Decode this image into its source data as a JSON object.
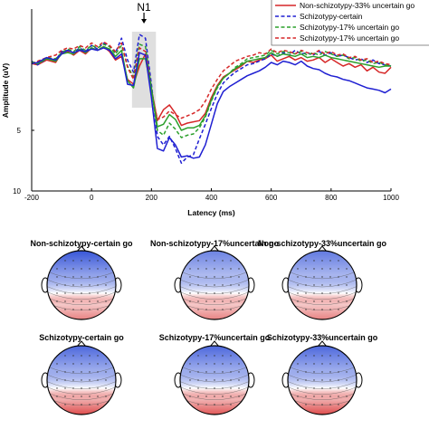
{
  "chart_data": [
    {
      "type": "line",
      "title": "",
      "xlabel": "Latency (ms)",
      "ylabel": "Amplitude (uV)",
      "xlim": [
        -200,
        1000
      ],
      "ylim": [
        -5,
        10
      ],
      "y_axis_reversed": true,
      "x_ticks": [
        -200,
        0,
        200,
        400,
        600,
        800,
        1000
      ],
      "y_ticks": [
        5,
        10
      ],
      "grid": false,
      "legend_position": "top-right",
      "annotation": {
        "label": "N1",
        "window": [
          135,
          215
        ],
        "arrow_at": 175
      },
      "series": [
        {
          "name": "Non-schizotypy-33% uncertain go",
          "color": "#d62728",
          "style": "solid",
          "x": [
            -200,
            -180,
            -150,
            -120,
            -100,
            -80,
            -60,
            -40,
            -20,
            0,
            20,
            40,
            60,
            80,
            100,
            120,
            140,
            160,
            180,
            200,
            220,
            240,
            260,
            280,
            300,
            320,
            340,
            360,
            380,
            400,
            420,
            440,
            460,
            480,
            500,
            520,
            540,
            560,
            580,
            600,
            620,
            640,
            660,
            680,
            700,
            720,
            740,
            760,
            780,
            800,
            820,
            840,
            860,
            880,
            900,
            920,
            940,
            960,
            980,
            1000
          ],
          "y": [
            -0.5,
            -0.4,
            -0.8,
            -0.6,
            -1.4,
            -1.5,
            -1.2,
            -1.6,
            -1.3,
            -1.8,
            -1.6,
            -1.9,
            -1.5,
            -0.8,
            -1.1,
            0.8,
            1.2,
            -0.3,
            -1.3,
            1.6,
            4.2,
            3.3,
            2.9,
            3.6,
            4.6,
            4.4,
            4.3,
            4.2,
            3.6,
            2.3,
            1.3,
            0.6,
            0.3,
            0.0,
            -0.3,
            -0.7,
            -0.6,
            -0.8,
            -0.9,
            -1.2,
            -0.7,
            -0.9,
            -1.1,
            -0.8,
            -1.0,
            -0.7,
            -0.8,
            -1.0,
            -0.6,
            -0.9,
            -0.6,
            -0.3,
            -0.5,
            -0.2,
            -0.4,
            0.1,
            -0.2,
            0.2,
            0.3,
            -0.2
          ]
        },
        {
          "name": "Schizotypy-certain",
          "color": "#1f1fd2",
          "style": "dashed",
          "x": [
            -200,
            -180,
            -150,
            -120,
            -100,
            -80,
            -60,
            -40,
            -20,
            0,
            20,
            40,
            60,
            80,
            100,
            120,
            140,
            160,
            180,
            200,
            220,
            240,
            260,
            280,
            300,
            320,
            340,
            360,
            380,
            400,
            420,
            440,
            460,
            480,
            500,
            520,
            540,
            560,
            580,
            600,
            620,
            640,
            660,
            680,
            700,
            720,
            740,
            760,
            780,
            800,
            820,
            840,
            860,
            880,
            900,
            920,
            940,
            960,
            980,
            1000
          ],
          "y": [
            -0.7,
            -0.4,
            -0.9,
            -0.8,
            -1.5,
            -1.6,
            -1.4,
            -1.8,
            -1.5,
            -2.0,
            -1.7,
            -2.2,
            -1.9,
            -1.4,
            -2.6,
            -0.8,
            0.2,
            -2.9,
            -2.6,
            1.2,
            5.5,
            6.2,
            5.5,
            6.5,
            7.7,
            7.2,
            7.0,
            5.7,
            4.5,
            3.2,
            2.0,
            1.1,
            0.6,
            0.2,
            -0.1,
            -0.4,
            -0.5,
            -0.7,
            -0.9,
            -1.3,
            -1.1,
            -1.4,
            -1.2,
            -1.6,
            -1.3,
            -1.4,
            -1.2,
            -1.5,
            -1.2,
            -1.4,
            -1.1,
            -1.2,
            -1.0,
            -0.8,
            -0.9,
            -0.6,
            -0.8,
            -0.5,
            -0.4,
            -0.3
          ]
        },
        {
          "name": "Schizotypy-17% uncertain go",
          "color": "#2ca02c",
          "style": "dashed",
          "x": [
            -200,
            -180,
            -150,
            -120,
            -100,
            -80,
            -60,
            -40,
            -20,
            0,
            20,
            40,
            60,
            80,
            100,
            120,
            140,
            160,
            180,
            200,
            220,
            240,
            260,
            280,
            300,
            320,
            340,
            360,
            380,
            400,
            420,
            440,
            460,
            480,
            500,
            520,
            540,
            560,
            580,
            600,
            620,
            640,
            660,
            680,
            700,
            720,
            740,
            760,
            780,
            800,
            820,
            840,
            860,
            880,
            900,
            920,
            940,
            960,
            980,
            1000
          ],
          "y": [
            -0.6,
            -0.6,
            -1.0,
            -0.9,
            -1.4,
            -1.7,
            -1.5,
            -1.9,
            -1.6,
            -2.0,
            -1.8,
            -2.1,
            -1.9,
            -1.3,
            -2.0,
            -0.3,
            0.6,
            -2.1,
            -1.9,
            1.5,
            5.0,
            5.4,
            4.4,
            4.9,
            5.6,
            5.4,
            5.3,
            4.8,
            3.9,
            2.6,
            1.5,
            0.7,
            0.3,
            -0.2,
            -0.5,
            -0.9,
            -1.0,
            -1.1,
            -1.2,
            -1.6,
            -1.3,
            -1.5,
            -1.4,
            -1.3,
            -1.5,
            -1.2,
            -1.4,
            -1.2,
            -1.5,
            -1.3,
            -1.1,
            -1.2,
            -0.9,
            -1.0,
            -0.7,
            -0.8,
            -0.5,
            -0.6,
            -0.4,
            -0.3
          ]
        },
        {
          "name": "Schizotypy-17% uncertain go",
          "color": "#d62728",
          "style": "dashed",
          "x": [
            -200,
            -180,
            -150,
            -120,
            -100,
            -80,
            -60,
            -40,
            -20,
            0,
            20,
            40,
            60,
            80,
            100,
            120,
            140,
            160,
            180,
            200,
            220,
            240,
            260,
            280,
            300,
            320,
            340,
            360,
            380,
            400,
            420,
            440,
            460,
            480,
            500,
            520,
            540,
            560,
            580,
            600,
            620,
            640,
            660,
            680,
            700,
            720,
            740,
            760,
            780,
            800,
            820,
            840,
            860,
            880,
            900,
            920,
            940,
            960,
            980,
            1000
          ],
          "y": [
            -0.5,
            -0.7,
            -1.0,
            -1.2,
            -1.6,
            -1.8,
            -1.7,
            -2.0,
            -1.8,
            -2.2,
            -1.9,
            -2.3,
            -2.0,
            -1.5,
            -2.2,
            -0.2,
            0.8,
            -1.8,
            -1.5,
            1.7,
            4.1,
            3.9,
            3.4,
            3.7,
            4.0,
            3.8,
            3.6,
            3.3,
            2.6,
            1.6,
            0.8,
            0.1,
            -0.3,
            -0.7,
            -0.9,
            -1.1,
            -1.2,
            -1.4,
            -1.3,
            -1.7,
            -1.4,
            -1.6,
            -1.5,
            -1.3,
            -1.6,
            -1.4,
            -1.3,
            -1.6,
            -1.3,
            -1.5,
            -1.2,
            -1.3,
            -1.0,
            -1.1,
            -0.8,
            -0.9,
            -0.6,
            -0.7,
            -0.5,
            -0.4
          ]
        },
        {
          "name": "",
          "color": "#2ca02c",
          "style": "solid",
          "x": [
            -200,
            -180,
            -150,
            -120,
            -100,
            -80,
            -60,
            -40,
            -20,
            0,
            20,
            40,
            60,
            80,
            100,
            120,
            140,
            160,
            180,
            200,
            220,
            240,
            260,
            280,
            300,
            320,
            340,
            360,
            380,
            400,
            420,
            440,
            460,
            480,
            500,
            520,
            540,
            560,
            580,
            600,
            620,
            640,
            660,
            680,
            700,
            720,
            740,
            760,
            780,
            800,
            820,
            840,
            860,
            880,
            900,
            920,
            940,
            960,
            980,
            1000
          ],
          "y": [
            -0.6,
            -0.5,
            -0.9,
            -0.7,
            -1.3,
            -1.4,
            -1.3,
            -1.7,
            -1.4,
            -1.8,
            -1.6,
            -1.9,
            -1.7,
            -1.1,
            -1.6,
            0.9,
            1.5,
            -0.9,
            -0.9,
            1.6,
            4.7,
            4.5,
            3.7,
            4.1,
            5.0,
            4.8,
            4.8,
            4.6,
            3.8,
            2.5,
            1.4,
            0.7,
            0.3,
            -0.1,
            -0.4,
            -0.7,
            -0.8,
            -0.9,
            -1.0,
            -1.4,
            -1.1,
            -1.3,
            -1.2,
            -1.1,
            -1.3,
            -1.0,
            -1.1,
            -1.0,
            -1.2,
            -1.0,
            -0.9,
            -0.8,
            -0.7,
            -0.6,
            -0.5,
            -0.4,
            -0.3,
            -0.2,
            -0.3,
            -0.3
          ]
        },
        {
          "name": "",
          "color": "#1f1fd2",
          "style": "solid",
          "x": [
            -200,
            -180,
            -150,
            -120,
            -100,
            -80,
            -60,
            -40,
            -20,
            0,
            20,
            40,
            60,
            80,
            100,
            120,
            140,
            160,
            180,
            200,
            220,
            240,
            260,
            280,
            300,
            320,
            340,
            360,
            380,
            400,
            420,
            440,
            460,
            480,
            500,
            520,
            540,
            560,
            580,
            600,
            620,
            640,
            660,
            680,
            700,
            720,
            740,
            760,
            780,
            800,
            820,
            840,
            860,
            880,
            900,
            920,
            940,
            960,
            980,
            1000
          ],
          "y": [
            -0.5,
            -0.6,
            -1.0,
            -0.8,
            -1.3,
            -1.6,
            -1.4,
            -1.6,
            -1.5,
            -1.7,
            -1.6,
            -1.8,
            -1.6,
            -0.9,
            -1.3,
            1.2,
            1.3,
            -1.4,
            -1.2,
            2.3,
            6.5,
            6.7,
            5.6,
            6.2,
            7.2,
            7.1,
            7.3,
            7.2,
            6.2,
            4.5,
            2.8,
            1.8,
            1.4,
            1.1,
            0.8,
            0.5,
            0.3,
            0.1,
            -0.2,
            -0.6,
            -0.4,
            -0.7,
            -0.6,
            -0.4,
            -0.7,
            -0.3,
            -0.1,
            0.0,
            0.3,
            0.5,
            0.6,
            0.8,
            0.9,
            1.1,
            1.3,
            1.5,
            1.6,
            1.7,
            1.9,
            1.6
          ]
        }
      ]
    },
    {
      "type": "heatmap",
      "subtype": "scalp-topography",
      "colormap": [
        "#2d4dd6",
        "#ffffff",
        "#d62020"
      ],
      "maps": [
        {
          "title": "Non-schizotypy-certain go",
          "negative_intensity": 0.95,
          "positive_intensity": 0.55
        },
        {
          "title": "Non-schizotypy-17%uncertain go",
          "negative_intensity": 0.7,
          "positive_intensity": 0.55
        },
        {
          "title": "Non-schizotypy-33%uncertain go",
          "negative_intensity": 0.75,
          "positive_intensity": 0.55
        },
        {
          "title": "Schizotypy-certain go",
          "negative_intensity": 0.85,
          "positive_intensity": 0.8
        },
        {
          "title": "Schizotypy-17%uncertain go",
          "negative_intensity": 0.85,
          "positive_intensity": 0.75
        },
        {
          "title": "Schizotypy-33%uncertain go",
          "negative_intensity": 0.85,
          "positive_intensity": 0.8
        }
      ]
    }
  ]
}
